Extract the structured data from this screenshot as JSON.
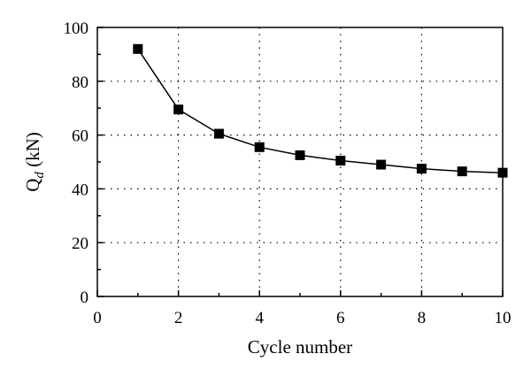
{
  "chart_data": {
    "type": "line",
    "title": "",
    "xlabel": "Cycle number",
    "ylabel": "Qd (kN)",
    "ylabel_main": "Q",
    "ylabel_sub": "d",
    "ylabel_unit": " (kN)",
    "xlim": [
      0,
      10
    ],
    "ylim": [
      0,
      100
    ],
    "xticks": [
      "0",
      "2",
      "4",
      "6",
      "8",
      "10"
    ],
    "yticks": [
      "0",
      "20",
      "40",
      "60",
      "80",
      "100"
    ],
    "grid": true,
    "legend": "none",
    "marker": "filled-square",
    "colors": {
      "series": "#000000",
      "grid": "#000000"
    },
    "series": [
      {
        "x": [
          1,
          2,
          3,
          4,
          5,
          6,
          7,
          8,
          9,
          10
        ],
        "values": [
          92,
          69.5,
          60.5,
          55.5,
          52.5,
          50.5,
          49,
          47.5,
          46.5,
          46
        ]
      }
    ]
  }
}
